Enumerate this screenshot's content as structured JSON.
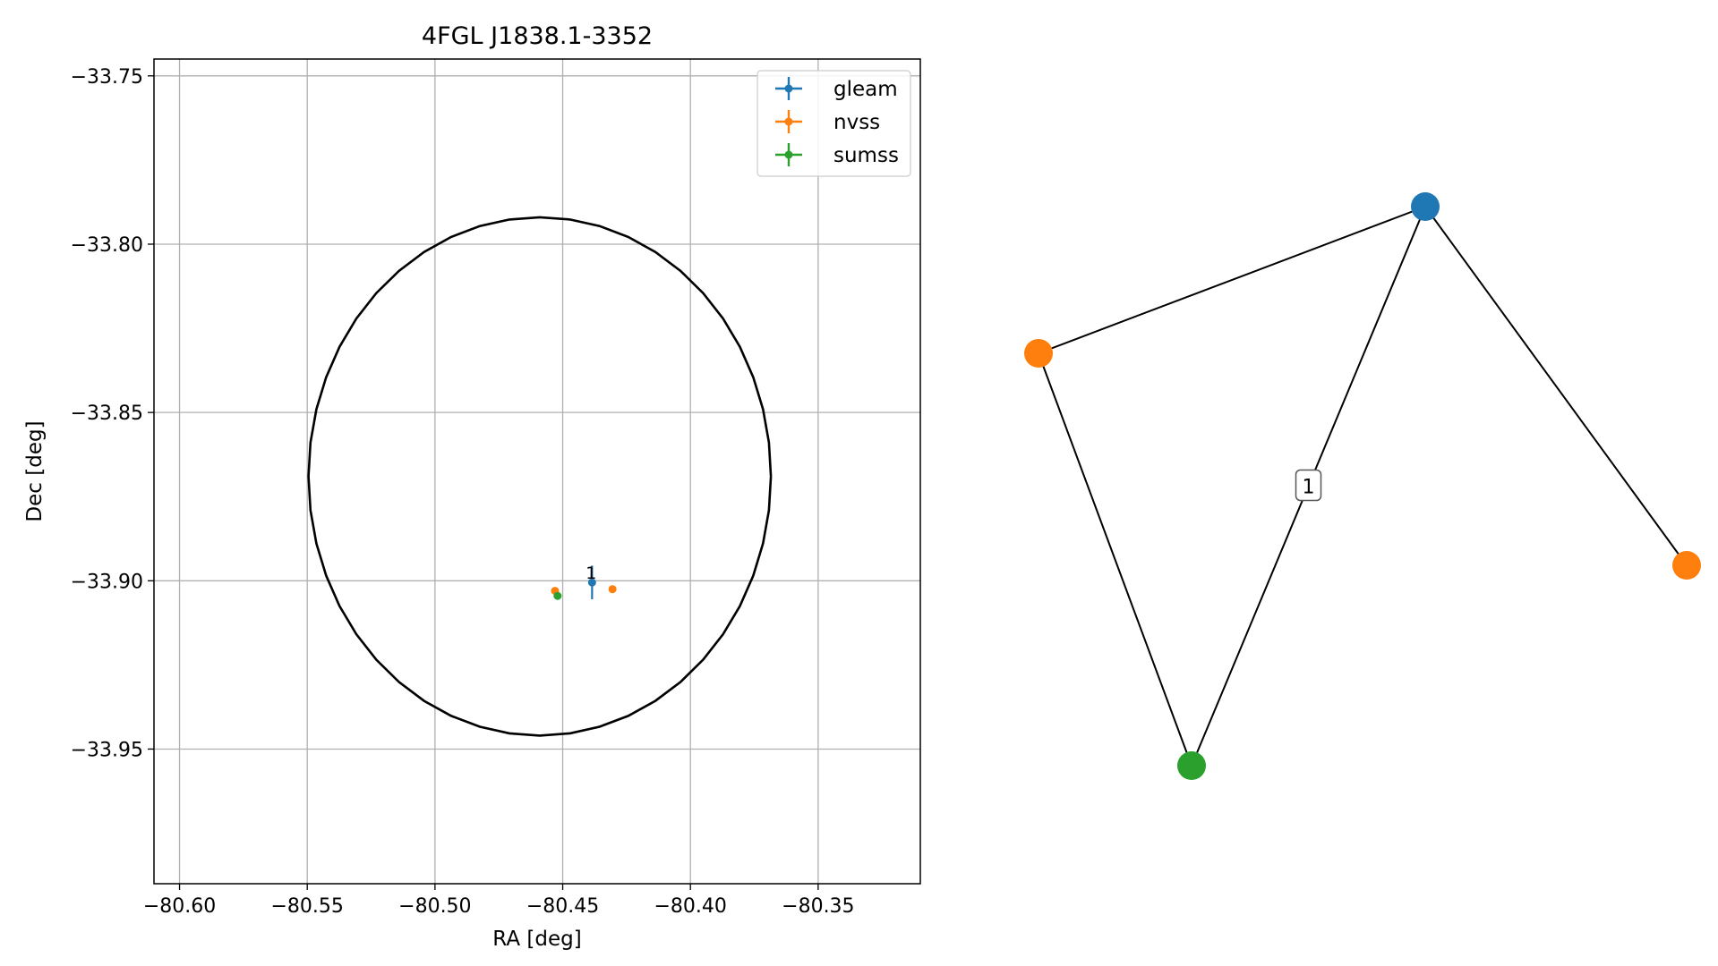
{
  "colors": {
    "gleam": "#1f77b4",
    "nvss": "#ff7f0e",
    "sumss": "#2ca02c",
    "grid": "#b0b0b0",
    "ellipse": "#000000"
  },
  "chart_data": [
    {
      "type": "scatter",
      "title": "4FGL J1838.1-3352",
      "xlabel": "RA [deg]",
      "ylabel": "Dec [deg]",
      "xlim": [
        -80.61,
        -80.31
      ],
      "ylim": [
        -33.99,
        -33.745
      ],
      "grid": true,
      "legend_position": "upper-right",
      "x_ticks": [
        -80.6,
        -80.55,
        -80.5,
        -80.45,
        -80.4,
        -80.35
      ],
      "x_tick_labels": [
        "−80.60",
        "−80.55",
        "−80.50",
        "−80.45",
        "−80.40",
        "−80.35"
      ],
      "y_ticks": [
        -33.75,
        -33.8,
        -33.85,
        -33.9,
        -33.95
      ],
      "y_tick_labels": [
        "−33.75",
        "−33.80",
        "−33.85",
        "−33.90",
        "−33.95"
      ],
      "series": [
        {
          "name": "gleam",
          "color_key": "gleam",
          "points": [
            {
              "x": -80.4385,
              "y": -33.9005,
              "xerr": 0.0008,
              "yerr": 0.005,
              "label": "1"
            }
          ]
        },
        {
          "name": "nvss",
          "color_key": "nvss",
          "points": [
            {
              "x": -80.453,
              "y": -33.903
            },
            {
              "x": -80.4305,
              "y": -33.9025
            }
          ]
        },
        {
          "name": "sumss",
          "color_key": "sumss",
          "points": [
            {
              "x": -80.452,
              "y": -33.9045
            }
          ]
        }
      ],
      "ellipse": {
        "center": [
          -80.459,
          -33.869
        ],
        "semi_axis_ra": 0.0905,
        "semi_axis_dec": 0.077
      }
    },
    {
      "type": "network",
      "nodes": [
        {
          "id": "gleam",
          "color_key": "gleam"
        },
        {
          "id": "nvss_a",
          "color_key": "nvss"
        },
        {
          "id": "sumss",
          "color_key": "sumss"
        },
        {
          "id": "nvss_b",
          "color_key": "nvss"
        }
      ],
      "edges": [
        {
          "source": "gleam",
          "target": "nvss_a",
          "label": ""
        },
        {
          "source": "gleam",
          "target": "sumss",
          "label": "1"
        },
        {
          "source": "gleam",
          "target": "nvss_b",
          "label": ""
        },
        {
          "source": "nvss_a",
          "target": "sumss",
          "label": ""
        }
      ]
    }
  ]
}
